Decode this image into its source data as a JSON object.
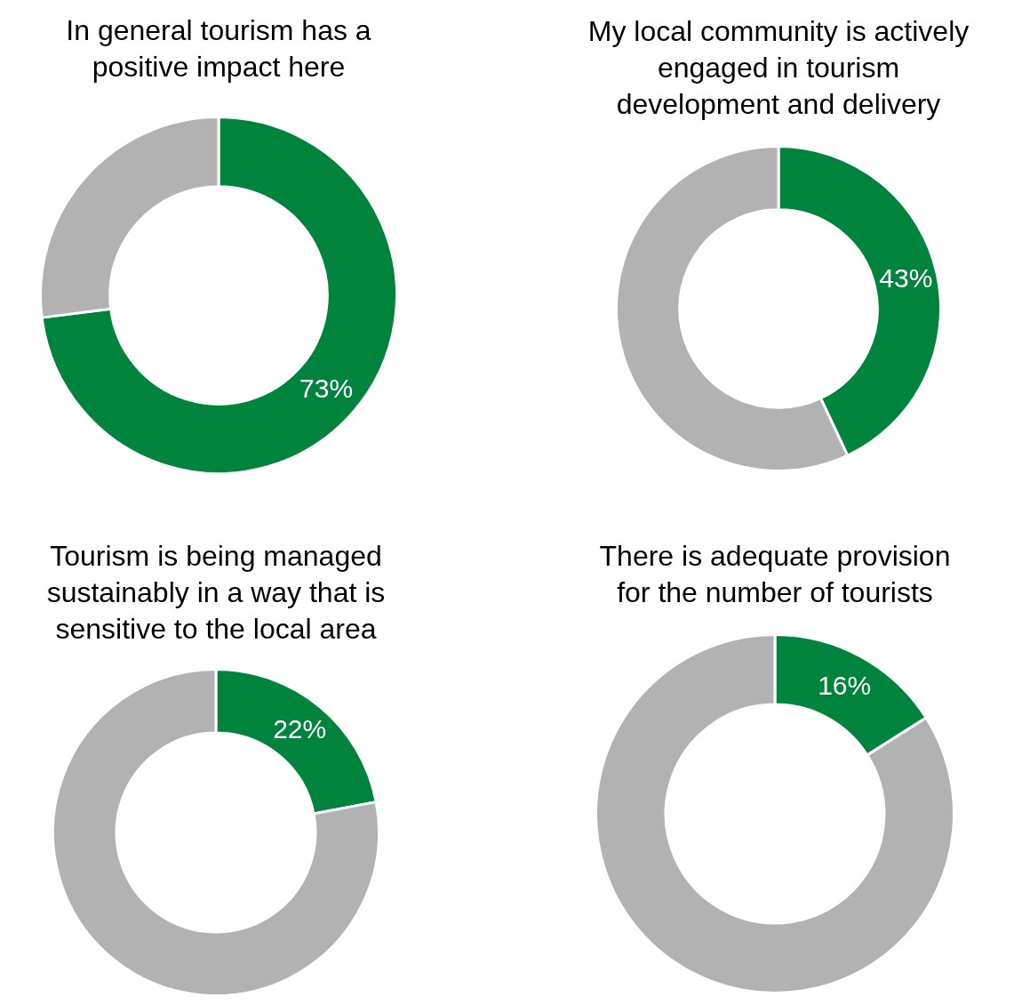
{
  "chart_data": [
    {
      "type": "donut",
      "title": "In general tourism has a\npositive impact here",
      "categories": [
        null,
        null
      ],
      "values": [
        73,
        27
      ],
      "colors": [
        "#00843d",
        "#b2b2b2"
      ],
      "value_labels": [
        "73%",
        null
      ],
      "legend": false
    },
    {
      "type": "donut",
      "title": "My local community is actively\nengaged in tourism\ndevelopment and delivery",
      "categories": [
        null,
        null
      ],
      "values": [
        43,
        57
      ],
      "colors": [
        "#00843d",
        "#b2b2b2"
      ],
      "value_labels": [
        "43%",
        null
      ],
      "legend": false
    },
    {
      "type": "donut",
      "title": "Tourism is being managed\nsustainably in a way that is\nsensitive to the local area",
      "categories": [
        null,
        null
      ],
      "values": [
        22,
        78
      ],
      "colors": [
        "#00843d",
        "#b2b2b2"
      ],
      "value_labels": [
        "22%",
        null
      ],
      "legend": false
    },
    {
      "type": "donut",
      "title": "There is adequate provision\nfor the number of tourists",
      "categories": [
        null,
        null
      ],
      "values": [
        16,
        84
      ],
      "colors": [
        "#00843d",
        "#b2b2b2"
      ],
      "value_labels": [
        "16%",
        null
      ],
      "legend": false
    }
  ]
}
